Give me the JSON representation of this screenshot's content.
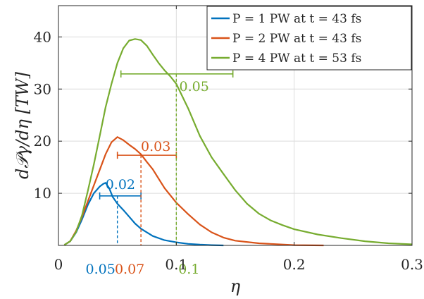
{
  "chart_data": {
    "type": "line",
    "xlabel": "η",
    "ylabel": "d𝒫γ/dη [TW]",
    "xlim": [
      0,
      0.3
    ],
    "ylim": [
      0,
      46
    ],
    "xticks": [
      0,
      0.1,
      0.2,
      0.3
    ],
    "xtick_labels": [
      "0",
      "0.1",
      "0.2",
      "0.3"
    ],
    "yticks": [
      10,
      20,
      30,
      40
    ],
    "ytick_labels": [
      "10",
      "20",
      "30",
      "40"
    ],
    "grid": true,
    "legend_position": "top-right",
    "series": [
      {
        "name": "P = 1 PW at t = 43 fs",
        "color": "#0072BD",
        "x": [
          0.005,
          0.01,
          0.015,
          0.02,
          0.025,
          0.03,
          0.035,
          0.038,
          0.04,
          0.043,
          0.046,
          0.05,
          0.055,
          0.06,
          0.065,
          0.07,
          0.08,
          0.09,
          0.1,
          0.11,
          0.12,
          0.13,
          0.14
        ],
        "y": [
          0.1,
          0.8,
          2.5,
          5.0,
          7.8,
          10.0,
          11.3,
          11.8,
          12.0,
          11.0,
          9.3,
          8.0,
          6.8,
          5.5,
          4.2,
          3.2,
          1.8,
          1.0,
          0.6,
          0.3,
          0.15,
          0.05,
          0.0
        ],
        "annotation": {
          "width_label": "0.02",
          "width_y": 9.5,
          "width_x": [
            0.035,
            0.07
          ],
          "peak_x": 0.05,
          "peak_label": "0.05"
        }
      },
      {
        "name": "P = 2 PW at t = 43 fs",
        "color": "#D95319",
        "x": [
          0.005,
          0.01,
          0.015,
          0.02,
          0.025,
          0.03,
          0.035,
          0.04,
          0.045,
          0.05,
          0.055,
          0.06,
          0.065,
          0.07,
          0.075,
          0.08,
          0.09,
          0.1,
          0.11,
          0.12,
          0.13,
          0.14,
          0.15,
          0.17,
          0.2,
          0.225
        ],
        "y": [
          0.1,
          0.8,
          2.8,
          5.5,
          8.5,
          11.5,
          14.5,
          17.5,
          19.8,
          20.8,
          20.2,
          19.3,
          18.5,
          17.5,
          16.0,
          14.6,
          11.0,
          8.2,
          6.0,
          4.0,
          2.5,
          1.5,
          0.9,
          0.4,
          0.05,
          0.0
        ],
        "annotation": {
          "width_label": "0.03",
          "width_y": 17.3,
          "width_x": [
            0.05,
            0.1
          ],
          "peak_x": 0.07,
          "peak_label": "0.07"
        }
      },
      {
        "name": "P = 4 PW at t = 53 fs",
        "color": "#77AC30",
        "x": [
          0.005,
          0.01,
          0.015,
          0.02,
          0.025,
          0.03,
          0.035,
          0.04,
          0.045,
          0.05,
          0.055,
          0.06,
          0.065,
          0.07,
          0.075,
          0.08,
          0.085,
          0.09,
          0.095,
          0.1,
          0.11,
          0.12,
          0.13,
          0.14,
          0.15,
          0.16,
          0.17,
          0.18,
          0.19,
          0.2,
          0.22,
          0.24,
          0.26,
          0.28,
          0.3
        ],
        "y": [
          0.1,
          0.8,
          2.6,
          5.8,
          10.5,
          15.5,
          21.0,
          26.5,
          31.0,
          35.0,
          37.8,
          39.3,
          39.6,
          39.4,
          38.3,
          36.6,
          35.0,
          33.6,
          32.4,
          31.0,
          26.3,
          21.0,
          16.9,
          13.7,
          10.6,
          8.0,
          6.1,
          4.8,
          3.9,
          3.1,
          2.1,
          1.4,
          0.8,
          0.4,
          0.2
        ],
        "annotation": {
          "width_label": "0.05",
          "width_y": 32.9,
          "width_x": [
            0.053,
            0.148
          ],
          "peak_x": 0.1,
          "peak_label": "0.1"
        }
      }
    ]
  }
}
